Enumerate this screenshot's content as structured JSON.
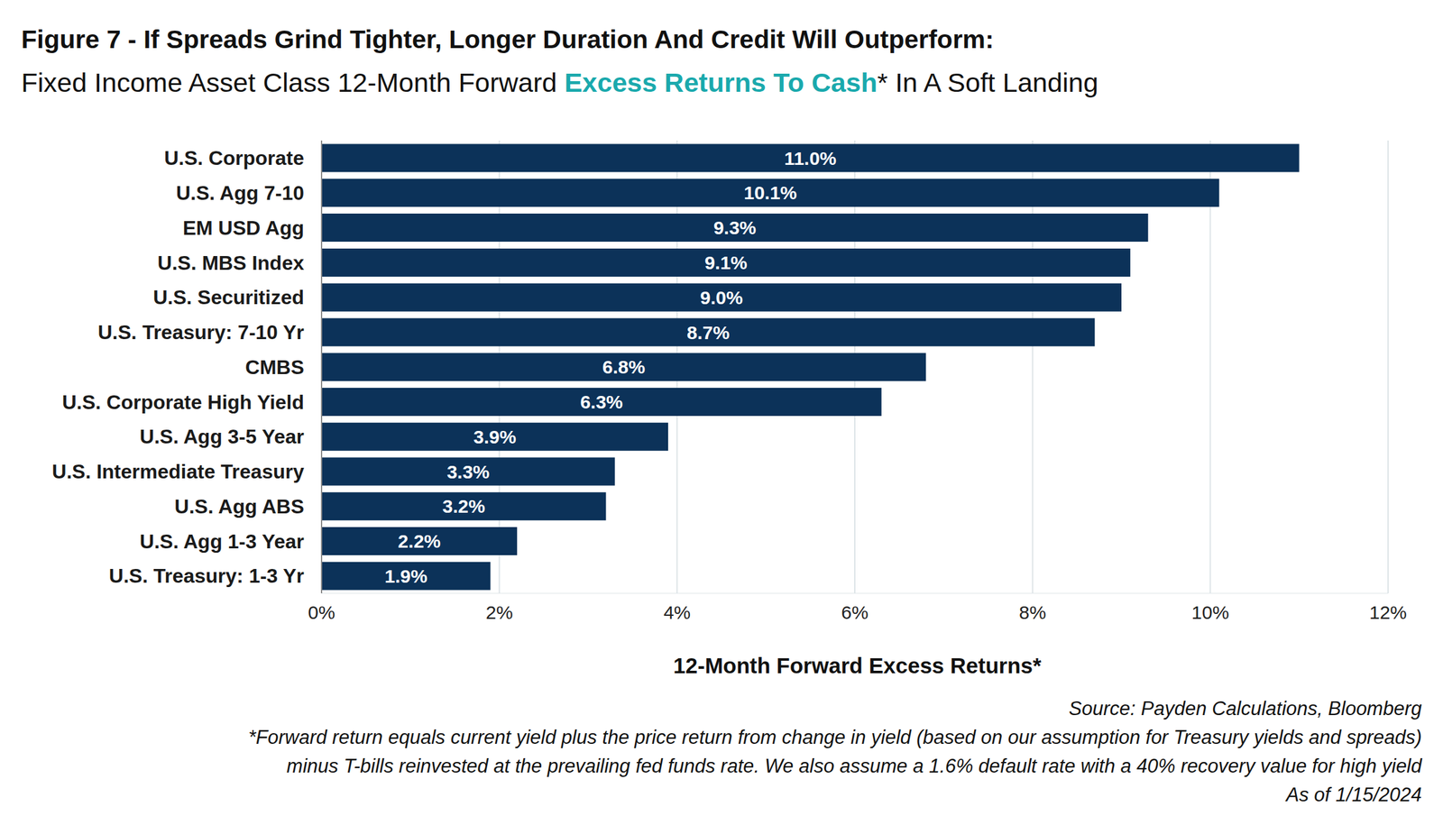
{
  "chart_data": {
    "type": "bar",
    "orientation": "horizontal",
    "title": "Figure 7 - If Spreads Grind Tighter, Longer Duration And Credit Will Outperform:",
    "subtitle": "Fixed Income Asset Class 12-Month Forward Excess Returns To Cash* In A Soft Landing",
    "subtitle_highlight": "Excess Returns To Cash",
    "x_label": "12-Month Forward Excess Returns*",
    "categories": [
      "U.S. Corporate",
      "U.S. Agg 7-10",
      "EM USD Agg",
      "U.S. MBS Index",
      "U.S. Securitized",
      "U.S. Treasury: 7-10 Yr",
      "CMBS",
      "U.S. Corporate High Yield",
      "U.S. Agg 3-5 Year",
      "U.S. Intermediate Treasury",
      "U.S. Agg ABS",
      "U.S. Agg 1-3 Year",
      "U.S. Treasury: 1-3 Yr"
    ],
    "values": [
      11.0,
      10.1,
      9.3,
      9.1,
      9.0,
      8.7,
      6.8,
      6.3,
      3.9,
      3.3,
      3.2,
      2.2,
      1.9
    ],
    "value_labels": [
      "11.0%",
      "10.1%",
      "9.3%",
      "9.1%",
      "9.0%",
      "8.7%",
      "6.8%",
      "6.3%",
      "3.9%",
      "3.3%",
      "3.2%",
      "2.2%",
      "1.9%"
    ],
    "data_labels": true,
    "color": "#0c3259",
    "highlight_color": "#1aa9ad",
    "xlim": [
      0,
      12
    ],
    "xticks": [
      {
        "value": 0,
        "label": "0%"
      },
      {
        "value": 2,
        "label": "2%"
      },
      {
        "value": 4,
        "label": "4%"
      },
      {
        "value": 6,
        "label": "6%"
      },
      {
        "value": 8,
        "label": "8%"
      },
      {
        "value": 10,
        "label": "10%"
      },
      {
        "value": 12,
        "label": "12%"
      }
    ],
    "grid": true,
    "source": "Source: Payden Calculations, Bloomberg",
    "footnote": [
      "*Forward return equals current yield plus the price return from change in yield (based on our assumption for Treasury yields and spreads)",
      "minus T-bills reinvested at the prevailing fed funds rate. We also assume a 1.6% default rate with a 40% recovery value for high yield",
      "As of 1/15/2024"
    ]
  }
}
